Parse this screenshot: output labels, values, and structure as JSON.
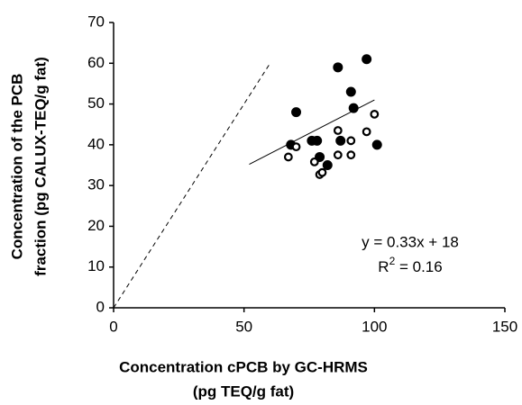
{
  "chart_data": {
    "type": "scatter",
    "x_title": [
      "Concentration cPCB by GC-HRMS",
      "(pg TEQ/g fat)"
    ],
    "y_title": [
      "Concentration  of the PCB",
      "fraction (pg CALUX-TEQ/g fat)"
    ],
    "xlim": [
      0,
      150
    ],
    "xticks": [
      0,
      50,
      100,
      150
    ],
    "ylim": [
      0,
      70
    ],
    "yticks": [
      0,
      10,
      20,
      30,
      40,
      50,
      60,
      70
    ],
    "series": [
      {
        "color": "#000000",
        "filled": true,
        "x": [
          97,
          86,
          91,
          92,
          70,
          68,
          76,
          78,
          87,
          101,
          79,
          82
        ],
        "values": [
          61,
          59,
          53,
          49,
          48,
          40,
          41,
          41,
          41,
          40,
          37,
          35
        ]
      },
      {
        "color": "#000000",
        "filled": false,
        "x": [
          67,
          70,
          77,
          79,
          80,
          86,
          86,
          91,
          91,
          97,
          100
        ],
        "values": [
          37,
          39.5,
          35.8,
          32.7,
          33.2,
          37.5,
          43.5,
          37.5,
          41,
          43.2,
          47.5
        ]
      }
    ],
    "lines": [
      {
        "color": "#000000",
        "dashed": false,
        "x": [
          52,
          100
        ],
        "values": [
          35.2,
          51
        ]
      },
      {
        "color": "#000000",
        "dashed": true,
        "x": [
          0,
          60
        ],
        "values": [
          0,
          60
        ]
      }
    ],
    "equation": "y = 0.33x + 18",
    "r2": [
      "R",
      "2",
      " = 0.16"
    ]
  }
}
